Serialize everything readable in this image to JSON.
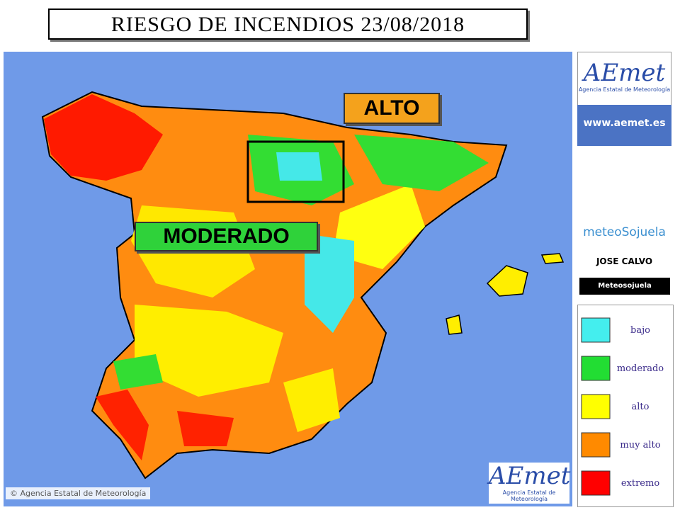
{
  "header": {
    "title": "RIESGO DE INCENDIOS 23/08/2018"
  },
  "map": {
    "labels": [
      "ALTO",
      "MODERADO"
    ],
    "copyright": "© Agencia Estatal de Meteorología",
    "logo": "AEmet",
    "logo_caption": "Agencia Estatal de Meteorología"
  },
  "sidebar": {
    "logo": "AEmet",
    "logo_caption": "Agencia Estatal de Meteorología",
    "url": "www.aemet.es",
    "brand": "meteoSojuela",
    "author": "JOSE CALVO",
    "social": "Meteosojuela"
  },
  "legend": {
    "items": [
      {
        "label": "bajo",
        "color": "#44eeee"
      },
      {
        "label": "moderado",
        "color": "#22dd33"
      },
      {
        "label": "alto",
        "color": "#ffff00"
      },
      {
        "label": "muy alto",
        "color": "#ff8a00"
      },
      {
        "label": "extremo",
        "color": "#ff0000"
      }
    ]
  }
}
